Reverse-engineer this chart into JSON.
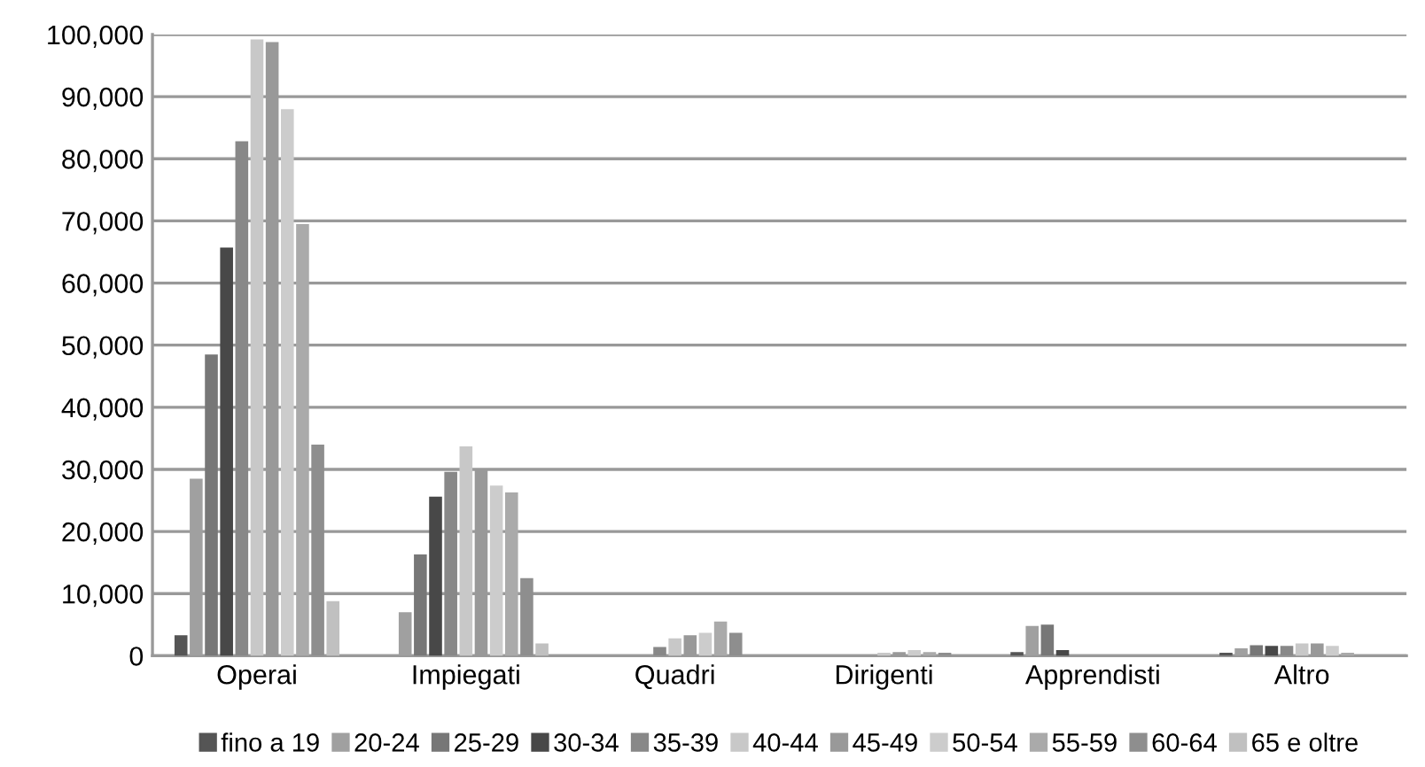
{
  "chart_data": {
    "type": "bar",
    "categories": [
      "Operai",
      "Impiegati",
      "Quadri",
      "Dirigenti",
      "Apprendisti",
      "Altro"
    ],
    "series": [
      {
        "name": "fino a 19",
        "color": "#555555",
        "values": [
          3300,
          null,
          null,
          null,
          600,
          500
        ]
      },
      {
        "name": "20-24",
        "color": "#a0a0a0",
        "values": [
          28500,
          7000,
          null,
          null,
          4800,
          1200
        ]
      },
      {
        "name": "25-29",
        "color": "#777777",
        "values": [
          48500,
          16300,
          null,
          null,
          5000,
          1700
        ]
      },
      {
        "name": "30-34",
        "color": "#484848",
        "values": [
          65700,
          25600,
          null,
          null,
          900,
          1600
        ]
      },
      {
        "name": "35-39",
        "color": "#888888",
        "values": [
          82800,
          29600,
          1400,
          null,
          null,
          1600
        ]
      },
      {
        "name": "40-44",
        "color": "#c8c8c8",
        "values": [
          99200,
          33700,
          2800,
          500,
          null,
          2000
        ]
      },
      {
        "name": "45-49",
        "color": "#999999",
        "values": [
          98800,
          30100,
          3300,
          600,
          null,
          2000
        ]
      },
      {
        "name": "50-54",
        "color": "#cccccc",
        "values": [
          88000,
          27400,
          3700,
          900,
          null,
          1600
        ]
      },
      {
        "name": "55-59",
        "color": "#aaaaaa",
        "values": [
          69500,
          26300,
          5500,
          600,
          null,
          500
        ]
      },
      {
        "name": "60-64",
        "color": "#8e8e8e",
        "values": [
          34000,
          12500,
          3700,
          500,
          null,
          null
        ]
      },
      {
        "name": "65 e oltre",
        "color": "#c0c0c0",
        "values": [
          8800,
          2000,
          null,
          null,
          null,
          null
        ]
      }
    ],
    "ylim": [
      0,
      100000
    ],
    "yticks": [
      {
        "value": 0,
        "label": "0"
      },
      {
        "value": 10000,
        "label": "10,000"
      },
      {
        "value": 20000,
        "label": "20,000"
      },
      {
        "value": 30000,
        "label": "30,000"
      },
      {
        "value": 40000,
        "label": "40,000"
      },
      {
        "value": 50000,
        "label": "50,000"
      },
      {
        "value": 60000,
        "label": "60,000"
      },
      {
        "value": 70000,
        "label": "70,000"
      },
      {
        "value": 80000,
        "label": "80,000"
      },
      {
        "value": 90000,
        "label": "90,000"
      },
      {
        "value": 100000,
        "label": "100,000"
      }
    ],
    "grid": "y",
    "legend": "bottom"
  }
}
